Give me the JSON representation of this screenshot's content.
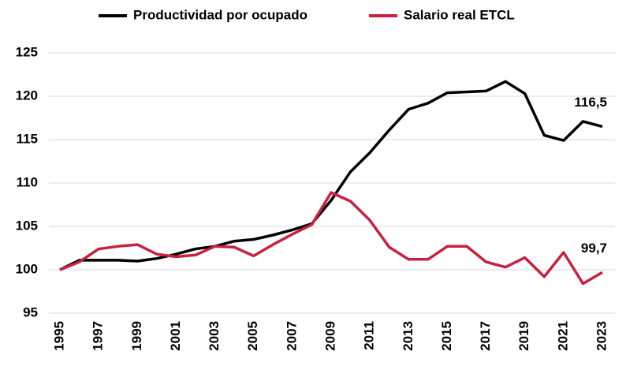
{
  "chart_data": {
    "type": "line",
    "categories": [
      "1995",
      null,
      "1997",
      null,
      "1999",
      null,
      "2001",
      null,
      "2003",
      null,
      "2005",
      null,
      "2007",
      null,
      "2009",
      null,
      "2011",
      null,
      "2013",
      null,
      "2015",
      null,
      "2017",
      null,
      "2019",
      null,
      "2021",
      null,
      "2023"
    ],
    "series": [
      {
        "name": "Productividad por ocupado",
        "color": "#000000",
        "values": [
          100,
          101.1,
          101.1,
          101.1,
          101.0,
          101.3,
          101.8,
          102.4,
          102.7,
          103.3,
          103.5,
          104.0,
          104.6,
          105.3,
          108.0,
          111.3,
          113.5,
          116.1,
          118.5,
          119.2,
          120.4,
          120.5,
          120.6,
          121.7,
          120.3,
          115.5,
          114.9,
          117.1,
          116.5
        ],
        "value_labels": [
          null,
          null,
          null,
          null,
          null,
          null,
          null,
          null,
          null,
          null,
          null,
          null,
          null,
          null,
          null,
          null,
          null,
          null,
          null,
          null,
          null,
          null,
          null,
          null,
          null,
          null,
          null,
          null,
          "116,5"
        ]
      },
      {
        "name": "Salario real ETCL",
        "color": "#c8203f",
        "values": [
          100,
          100.9,
          102.4,
          102.7,
          102.9,
          101.8,
          101.5,
          101.7,
          102.7,
          102.6,
          101.6,
          102.9,
          104.1,
          105.2,
          108.9,
          107.9,
          105.7,
          102.6,
          101.2,
          101.2,
          102.7,
          102.7,
          100.9,
          100.3,
          101.4,
          99.2,
          102.0,
          98.4,
          99.7
        ],
        "value_labels": [
          null,
          null,
          null,
          null,
          null,
          null,
          null,
          null,
          null,
          null,
          null,
          null,
          null,
          null,
          null,
          null,
          null,
          null,
          null,
          null,
          null,
          null,
          null,
          null,
          null,
          null,
          null,
          null,
          "99,7"
        ]
      }
    ],
    "ylim": [
      95,
      125
    ],
    "yticks": [
      95,
      100,
      105,
      110,
      115,
      120,
      125
    ],
    "grid": true,
    "legend": "top"
  }
}
